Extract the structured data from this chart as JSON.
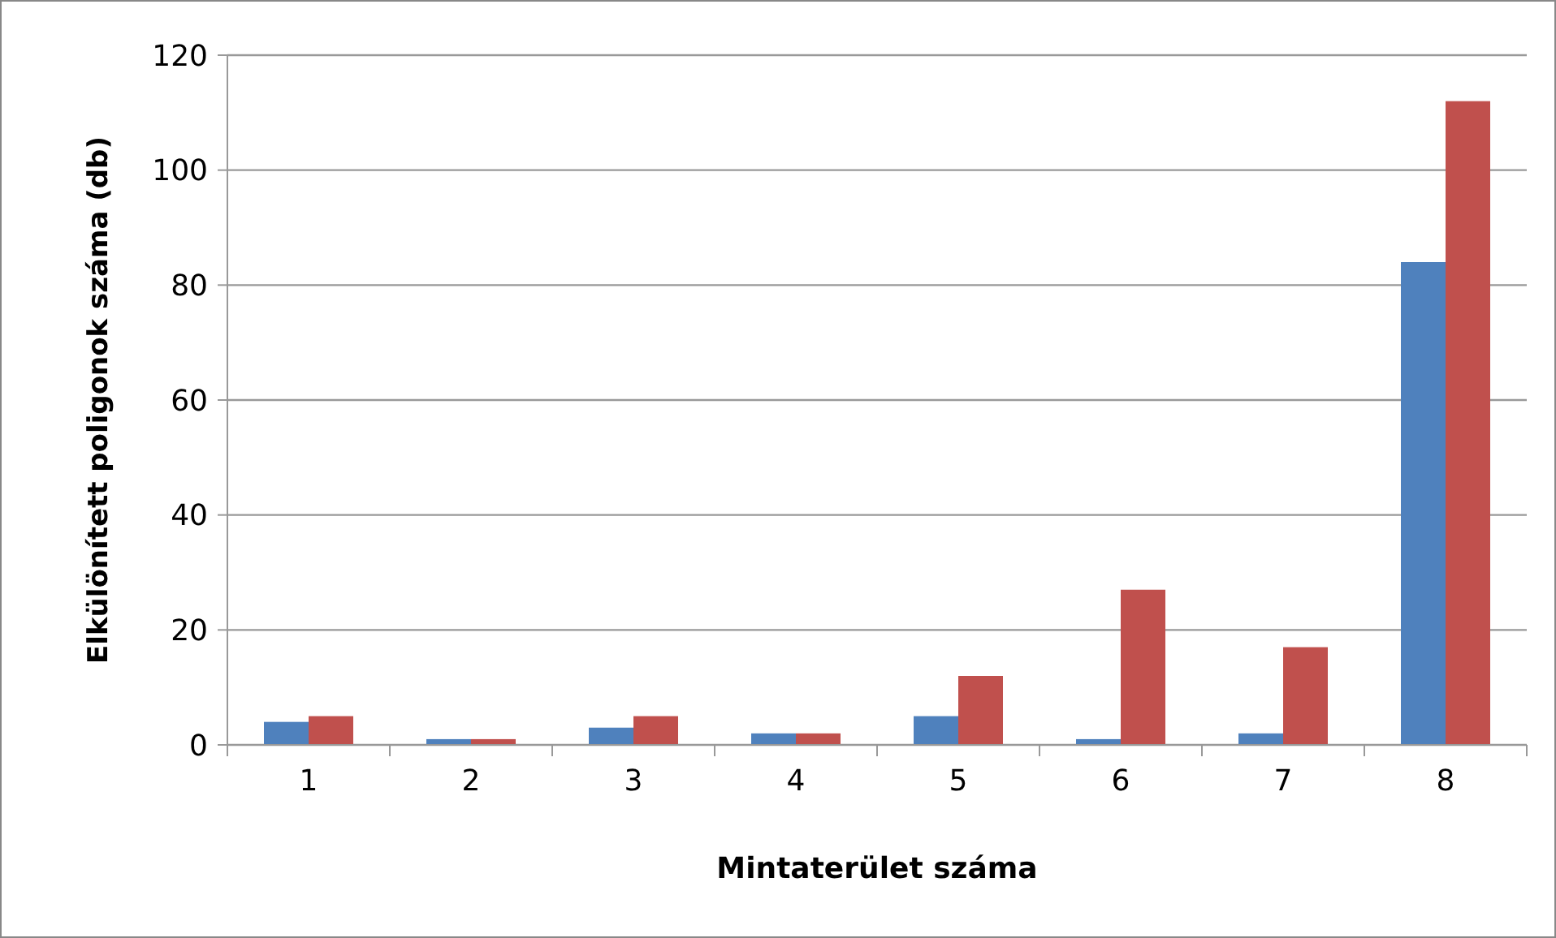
{
  "chart_data": {
    "type": "bar",
    "xlabel": "Mintaterület száma",
    "ylabel": "Elkülönített poligonok száma (db)",
    "categories": [
      "1",
      "2",
      "3",
      "4",
      "5",
      "6",
      "7",
      "8"
    ],
    "series": [
      {
        "color": "#4f81bd",
        "values": [
          4,
          1,
          3,
          2,
          5,
          1,
          2,
          84
        ]
      },
      {
        "color": "#c0504d",
        "values": [
          5,
          1,
          5,
          2,
          12,
          27,
          17,
          112
        ]
      }
    ],
    "ylim": [
      0,
      120
    ],
    "yticks": [
      0,
      20,
      40,
      60,
      80,
      100,
      120
    ],
    "grid": "y"
  }
}
